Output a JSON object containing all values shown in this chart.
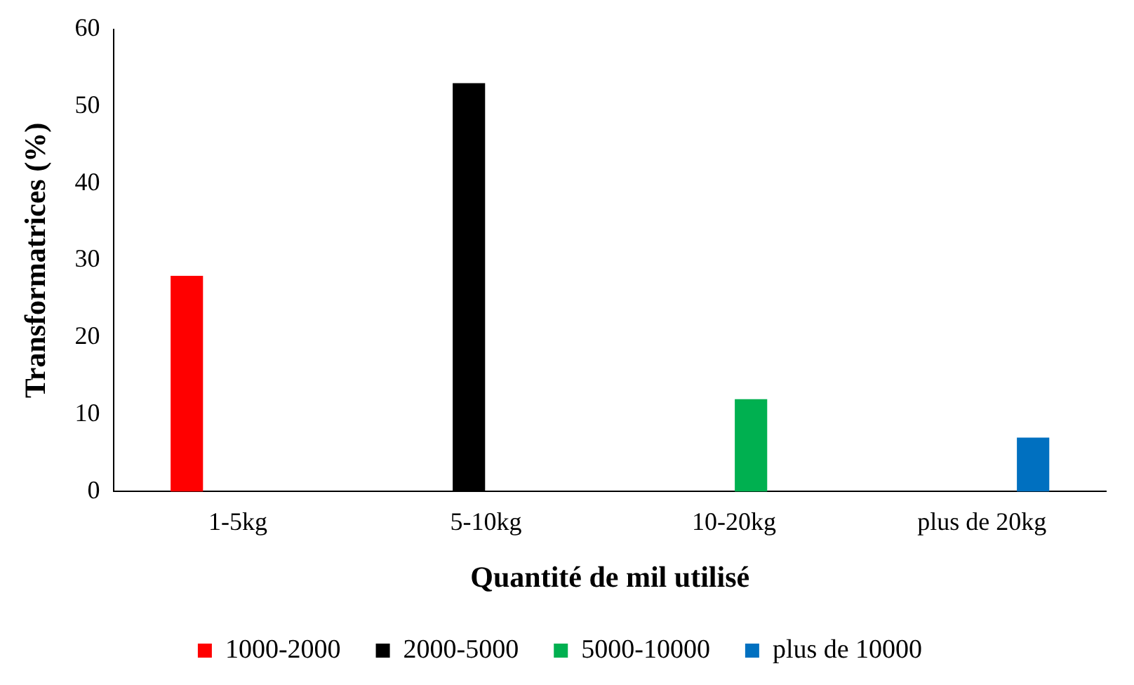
{
  "chart_data": {
    "type": "bar",
    "xlabel": "Quantité de mil utilisé",
    "ylabel": "Transformatrices (%)",
    "categories": [
      "1-5kg",
      "5-10kg",
      "10-20kg",
      "plus de 20kg"
    ],
    "series": [
      {
        "name": "1000-2000",
        "color": "#ff0000",
        "values": [
          28,
          null,
          null,
          null
        ]
      },
      {
        "name": "2000-5000",
        "color": "#000000",
        "values": [
          null,
          53,
          null,
          null
        ]
      },
      {
        "name": "5000-10000",
        "color": "#00b050",
        "values": [
          null,
          null,
          12,
          null
        ]
      },
      {
        "name": "plus de 10000",
        "color": "#0070c0",
        "values": [
          null,
          null,
          null,
          7
        ]
      }
    ],
    "ylim": [
      0,
      60
    ],
    "yticks": [
      0,
      10,
      20,
      30,
      40,
      50,
      60
    ],
    "grid": false,
    "legend": "bottom"
  }
}
